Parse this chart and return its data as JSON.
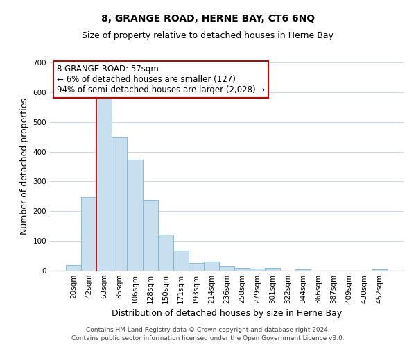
{
  "title": "8, GRANGE ROAD, HERNE BAY, CT6 6NQ",
  "subtitle": "Size of property relative to detached houses in Herne Bay",
  "xlabel": "Distribution of detached houses by size in Herne Bay",
  "ylabel": "Number of detached properties",
  "bar_labels": [
    "20sqm",
    "42sqm",
    "63sqm",
    "85sqm",
    "106sqm",
    "128sqm",
    "150sqm",
    "171sqm",
    "193sqm",
    "214sqm",
    "236sqm",
    "258sqm",
    "279sqm",
    "301sqm",
    "322sqm",
    "344sqm",
    "366sqm",
    "387sqm",
    "409sqm",
    "430sqm",
    "452sqm"
  ],
  "bar_values": [
    18,
    248,
    583,
    449,
    373,
    238,
    122,
    67,
    25,
    30,
    14,
    10,
    7,
    9,
    0,
    4,
    0,
    0,
    0,
    0,
    4
  ],
  "bar_color": "#c8dff0",
  "bar_edge_color": "#7ab4d4",
  "ylim": [
    0,
    700
  ],
  "yticks": [
    0,
    100,
    200,
    300,
    400,
    500,
    600,
    700
  ],
  "vline_color": "#cc0000",
  "annotation_line1": "8 GRANGE ROAD: 57sqm",
  "annotation_line2": "← 6% of detached houses are smaller (127)",
  "annotation_line3": "94% of semi-detached houses are larger (2,028) →",
  "annotation_box_color": "#ffffff",
  "annotation_box_edge": "#cc0000",
  "footer1": "Contains HM Land Registry data © Crown copyright and database right 2024.",
  "footer2": "Contains public sector information licensed under the Open Government Licence v3.0.",
  "title_fontsize": 10,
  "subtitle_fontsize": 9,
  "axis_label_fontsize": 9,
  "tick_fontsize": 7.5,
  "annotation_fontsize": 8.5,
  "footer_fontsize": 6.5,
  "grid_color": "#ccd9e8"
}
